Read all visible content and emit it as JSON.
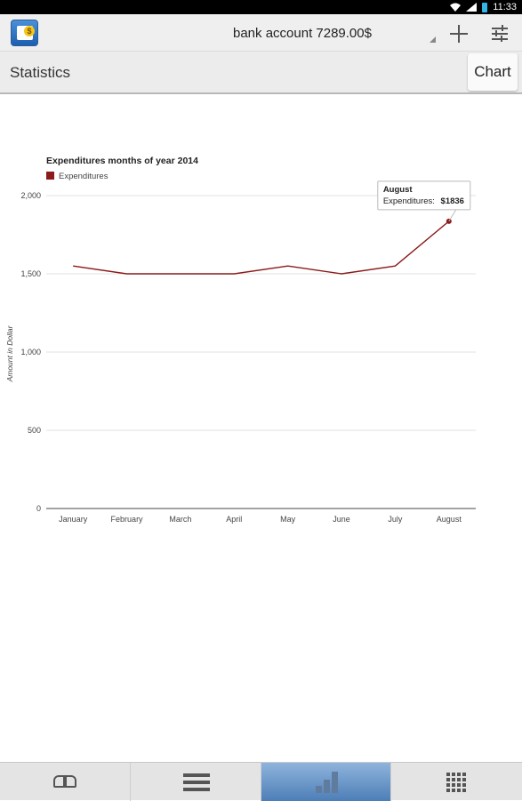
{
  "status_bar": {
    "time": "11:33"
  },
  "action_bar": {
    "account_label": "bank account 7289.00$"
  },
  "sub_header": {
    "title": "Statistics",
    "chart_tab": "Chart"
  },
  "colors": {
    "series": "#8b1a1a",
    "active_tab": "#5a88c0"
  },
  "bottom_nav": {
    "icons": [
      "book-icon",
      "list-icon",
      "bar-chart-icon",
      "grid-icon"
    ],
    "active": 2
  },
  "chart_data": {
    "type": "line",
    "title": "Expenditures months of year 2014",
    "ylabel": "Amount in Dollar",
    "xlabel": "",
    "categories": [
      "January",
      "February",
      "March",
      "April",
      "May",
      "June",
      "July",
      "August"
    ],
    "series": [
      {
        "name": "Expenditures",
        "values": [
          1550,
          1500,
          1500,
          1500,
          1550,
          1500,
          1550,
          1836
        ]
      }
    ],
    "ylim": [
      0,
      2000
    ],
    "yticks": [
      0,
      500,
      1000,
      1500,
      2000
    ],
    "ytick_labels": [
      "0",
      "500",
      "1,000",
      "1,500",
      "2,000"
    ],
    "grid": true,
    "legend": "top-left",
    "tooltip": {
      "title": "August",
      "label": "Expenditures:",
      "value": "$1836"
    }
  }
}
